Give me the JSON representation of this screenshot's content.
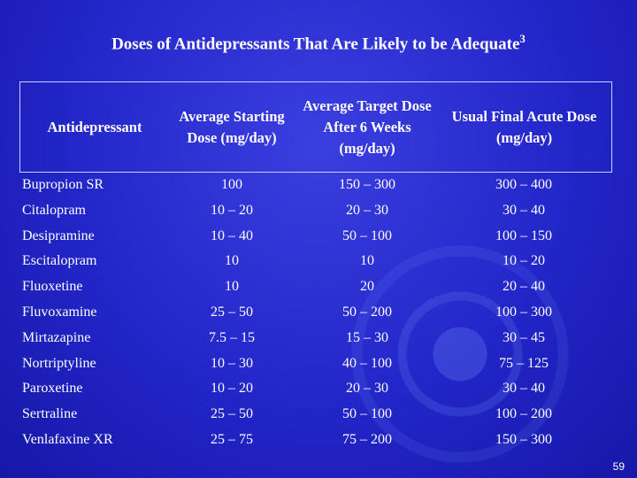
{
  "header": {
    "title": "Doses of Antidepressants That Are Likely to be Adequate",
    "title_superscript": "3"
  },
  "table": {
    "columns": [
      "Antidepressant",
      "Average Starting Dose (mg/day)",
      "Average Target Dose After 6 Weeks (mg/day)",
      "Usual Final Acute Dose (mg/day)"
    ],
    "rows": [
      [
        "Bupropion SR",
        "100",
        "150 – 300",
        "300 – 400"
      ],
      [
        "Citalopram",
        "10 – 20",
        "20 – 30",
        "30 – 40"
      ],
      [
        "Desipramine",
        "10 – 40",
        "50 – 100",
        "100 – 150"
      ],
      [
        "Escitalopram",
        "10",
        "10",
        "10 – 20"
      ],
      [
        "Fluoxetine",
        "10",
        "20",
        "20 – 40"
      ],
      [
        "Fluvoxamine",
        "25 – 50",
        "50 – 200",
        "100 – 300"
      ],
      [
        "Mirtazapine",
        "7.5 – 15",
        "15 – 30",
        "30 – 45"
      ],
      [
        "Nortriptyline",
        "10 – 30",
        "40 – 100",
        "75 – 125"
      ],
      [
        "Paroxetine",
        "10 – 20",
        "20 – 30",
        "30 – 40"
      ],
      [
        "Sertraline",
        "25 – 50",
        "50 – 100",
        "100 – 200"
      ],
      [
        "Venlafaxine XR",
        "25 – 75",
        "75 – 200",
        "150 – 300"
      ]
    ]
  },
  "footer": {
    "page_number": "59"
  }
}
